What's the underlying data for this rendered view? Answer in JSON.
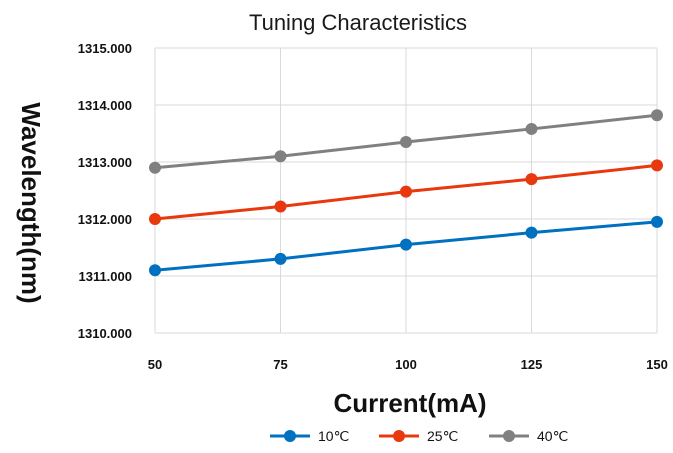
{
  "chart_data": {
    "type": "line",
    "title": "Tuning Characteristics",
    "xlabel": "Current(mA)",
    "ylabel": "Wavelength(nm)",
    "x": [
      50,
      75,
      100,
      125,
      150
    ],
    "x_tick_labels": [
      "50",
      "75",
      "100",
      "125",
      "150"
    ],
    "y_tick_labels": [
      "1315.000",
      "1314.000",
      "1313.000",
      "1312.000",
      "1311.000",
      "1310.000"
    ],
    "xlim": [
      50,
      150
    ],
    "ylim": [
      1310,
      1315
    ],
    "grid": true,
    "legend_position": "bottom",
    "series": [
      {
        "name": "10℃",
        "color": "#0070c0",
        "values": [
          1311.1,
          1311.3,
          1311.55,
          1311.76,
          1311.95
        ]
      },
      {
        "name": "25℃",
        "color": "#e8380d",
        "values": [
          1312.0,
          1312.22,
          1312.48,
          1312.7,
          1312.94
        ]
      },
      {
        "name": "40℃",
        "color": "#808080",
        "values": [
          1312.9,
          1313.1,
          1313.35,
          1313.58,
          1313.82
        ]
      }
    ]
  }
}
